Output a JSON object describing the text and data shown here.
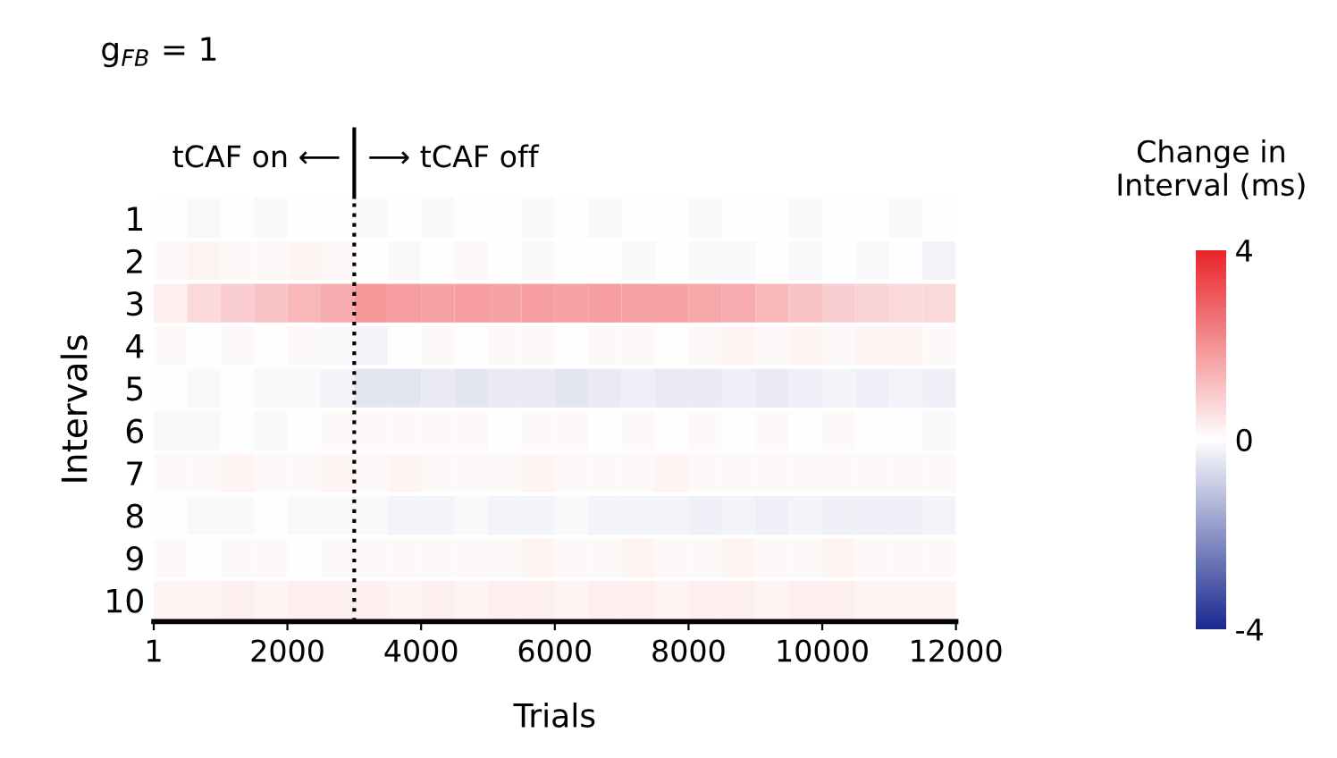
{
  "chart_data": {
    "type": "heatmap",
    "title": "g$_{FB}$ = 1",
    "xlabel": "Trials",
    "ylabel": "Intervals",
    "clabel": "Change in\nInterval (ms)",
    "annotations": [
      "tCAF on ⟵",
      "⟶ tCAF off"
    ],
    "x": [
      250,
      750,
      1250,
      1750,
      2250,
      2750,
      3250,
      3750,
      4250,
      4750,
      5250,
      5750,
      6250,
      6750,
      7250,
      7750,
      8250,
      8750,
      9250,
      9750,
      10250,
      10750,
      11250,
      11750
    ],
    "xlim": [
      1,
      12000
    ],
    "xticks": [
      1,
      2000,
      4000,
      6000,
      8000,
      10000,
      12000
    ],
    "y_categories": [
      "1",
      "2",
      "3",
      "4",
      "5",
      "6",
      "7",
      "8",
      "9",
      "10"
    ],
    "cells": [
      [
        0,
        -0.1,
        0,
        -0.1,
        0,
        0,
        -0.1,
        0,
        -0.1,
        0,
        0,
        -0.1,
        0,
        -0.1,
        0,
        0,
        -0.1,
        0,
        0,
        -0.1,
        0,
        0,
        -0.1,
        0
      ],
      [
        0.1,
        0.2,
        0.1,
        0.1,
        0.2,
        0.1,
        0,
        -0.1,
        0,
        0.1,
        0,
        -0.1,
        0,
        0,
        -0.1,
        0,
        -0.1,
        -0.1,
        0,
        -0.1,
        0,
        -0.1,
        0,
        -0.2
      ],
      [
        0.3,
        0.7,
        0.9,
        1.1,
        1.3,
        1.5,
        1.9,
        1.8,
        1.7,
        1.8,
        1.7,
        1.8,
        1.7,
        1.8,
        1.7,
        1.7,
        1.6,
        1.5,
        1.3,
        1.1,
        0.9,
        0.8,
        0.7,
        0.7
      ],
      [
        0.1,
        0,
        0.1,
        0,
        0.1,
        -0.1,
        -0.2,
        0,
        0.1,
        0,
        0.1,
        0.1,
        0,
        0.1,
        0.1,
        0,
        0.1,
        0.2,
        0.1,
        0.2,
        0.1,
        0.2,
        0.2,
        0.1
      ],
      [
        0,
        -0.1,
        0,
        -0.1,
        -0.1,
        -0.2,
        -0.5,
        -0.5,
        -0.4,
        -0.5,
        -0.4,
        -0.4,
        -0.5,
        -0.4,
        -0.3,
        -0.4,
        -0.4,
        -0.3,
        -0.4,
        -0.3,
        -0.2,
        -0.3,
        -0.2,
        -0.3
      ],
      [
        -0.1,
        -0.1,
        0,
        -0.1,
        0,
        0.1,
        0.1,
        0.1,
        0.1,
        0.1,
        0,
        0.1,
        0.1,
        0,
        0.1,
        0,
        0.1,
        0,
        0.1,
        0,
        0.1,
        0,
        0,
        -0.1
      ],
      [
        0.1,
        0.1,
        0.2,
        0.1,
        0.1,
        0.2,
        0.1,
        0.2,
        0.1,
        0.1,
        0.1,
        0.2,
        0.1,
        0.1,
        0.1,
        0.2,
        0.1,
        0.1,
        0.1,
        0.1,
        0.1,
        0.1,
        0.1,
        0.1
      ],
      [
        0,
        -0.1,
        -0.1,
        0,
        -0.1,
        -0.1,
        -0.1,
        -0.2,
        -0.2,
        -0.1,
        -0.2,
        -0.2,
        -0.1,
        -0.2,
        -0.2,
        -0.2,
        -0.3,
        -0.2,
        -0.3,
        -0.2,
        -0.3,
        -0.3,
        -0.3,
        -0.2
      ],
      [
        0.1,
        0,
        0.1,
        0.1,
        0,
        0.1,
        0.1,
        0.1,
        0.1,
        0.1,
        0.1,
        0.2,
        0.1,
        0.1,
        0.2,
        0.1,
        0.1,
        0.2,
        0.1,
        0.1,
        0.2,
        0.1,
        0.1,
        0.1
      ],
      [
        0.2,
        0.2,
        0.3,
        0.2,
        0.3,
        0.3,
        0.3,
        0.2,
        0.3,
        0.2,
        0.3,
        0.3,
        0.2,
        0.3,
        0.3,
        0.2,
        0.3,
        0.3,
        0.2,
        0.3,
        0.3,
        0.2,
        0.2,
        0.2
      ]
    ],
    "clim": [
      -4,
      4
    ],
    "cticks": [
      -4,
      0,
      4
    ],
    "ref_lines": [
      {
        "axis": "x",
        "value": 3000,
        "line_style": "dotted",
        "color": "#000000"
      }
    ]
  }
}
